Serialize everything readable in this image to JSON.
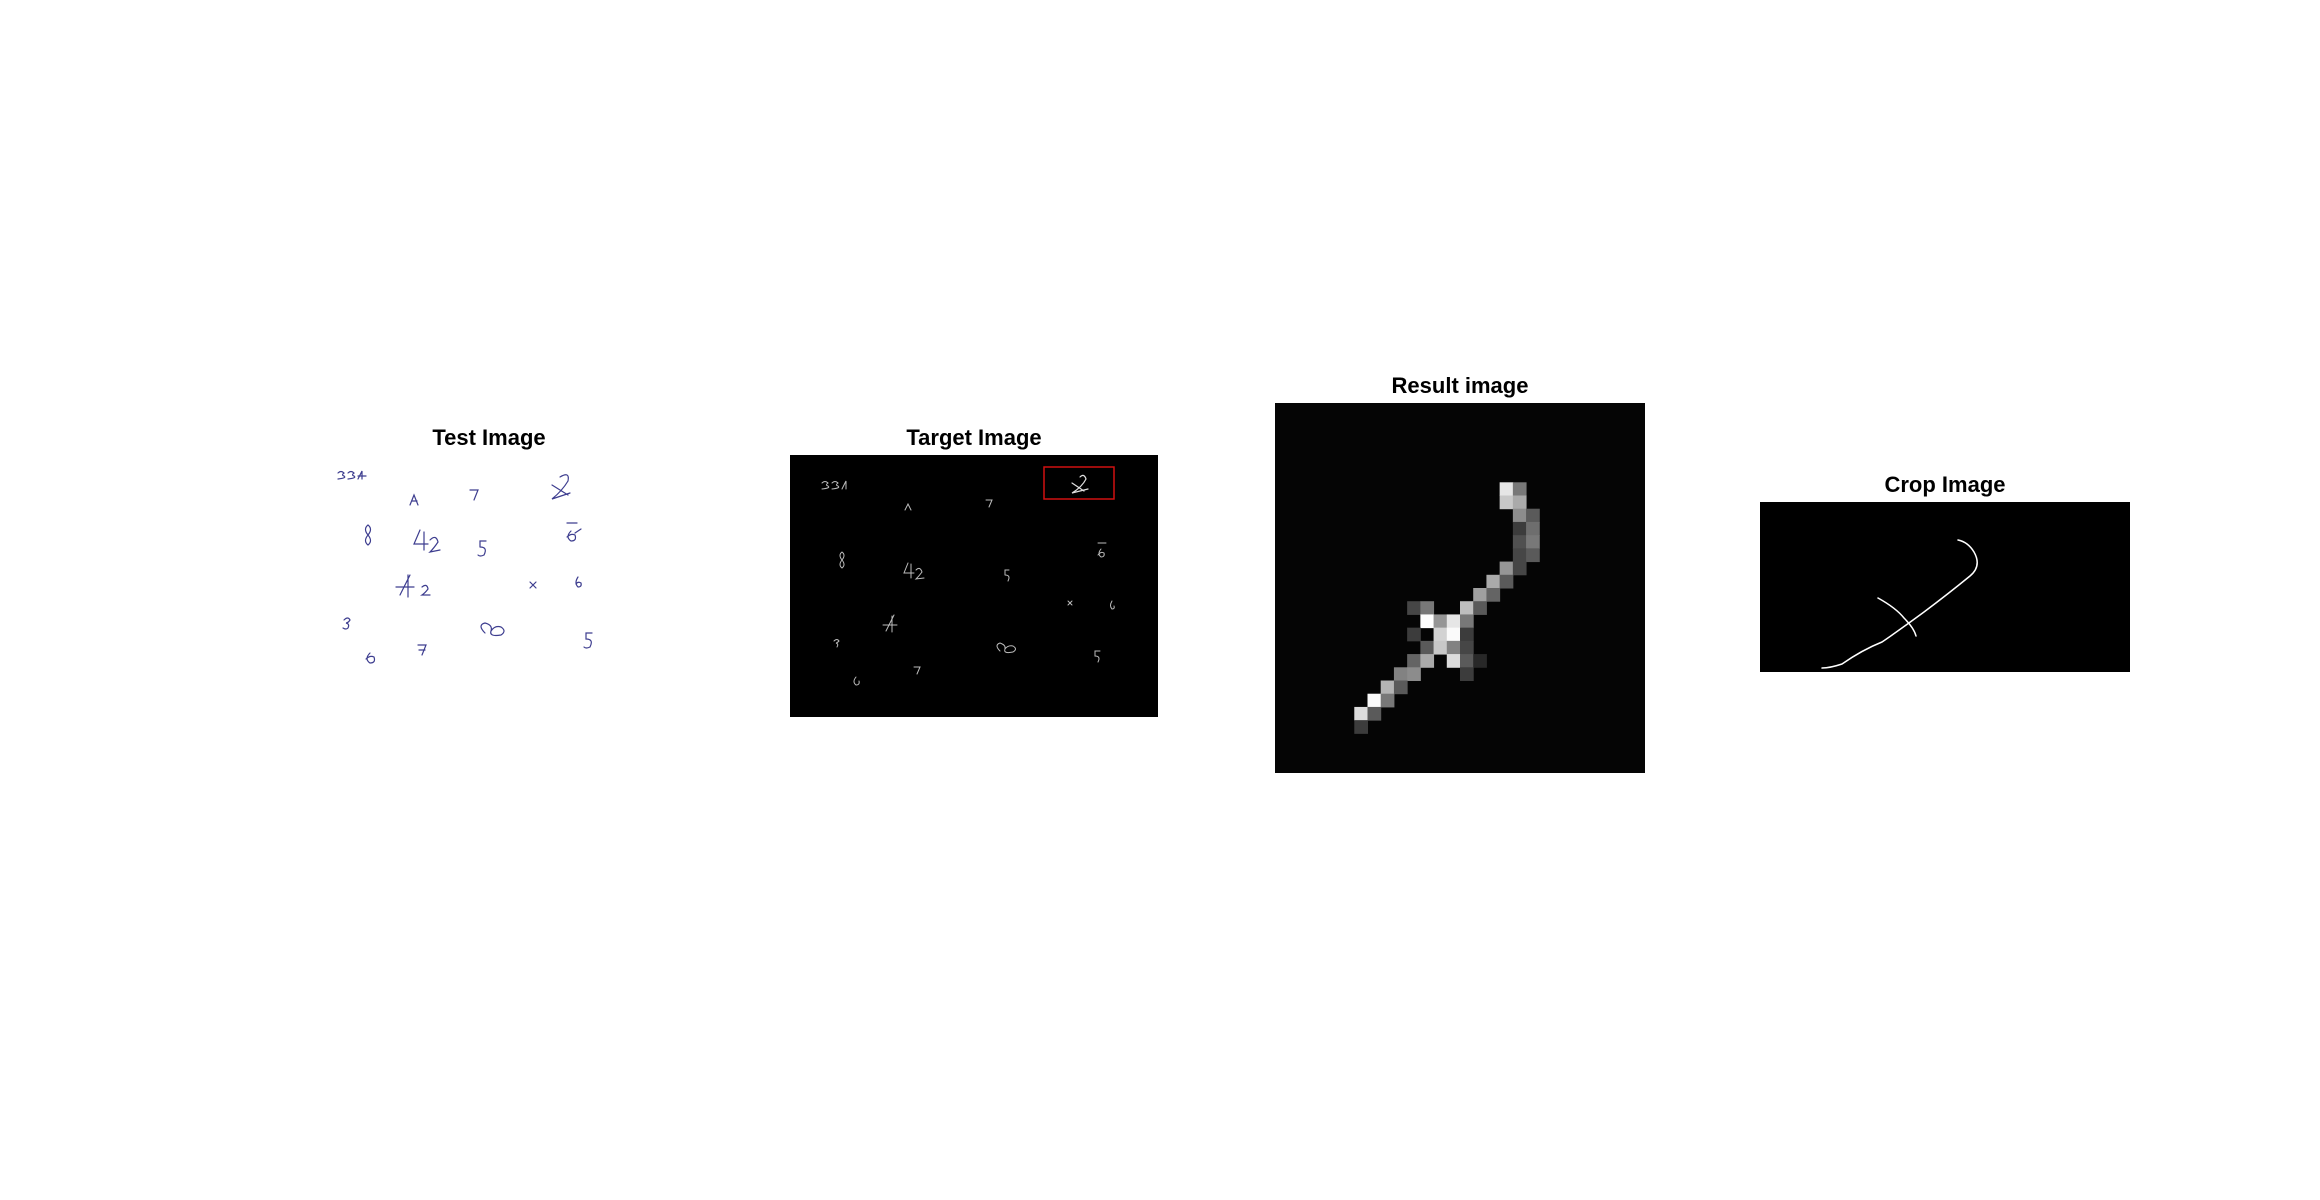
{
  "panels": {
    "test": {
      "title": "Test Image",
      "stroke_color": "#3d3d8f",
      "background": "#ffffff"
    },
    "target": {
      "title": "Target Image",
      "stroke_color": "#cfcfcf",
      "background": "#000000",
      "highlight_color": "#d01010"
    },
    "result": {
      "title": "Result image",
      "background": "#000000"
    },
    "crop": {
      "title": "Crop Image",
      "stroke_color": "#ffffff",
      "background": "#000000"
    }
  }
}
